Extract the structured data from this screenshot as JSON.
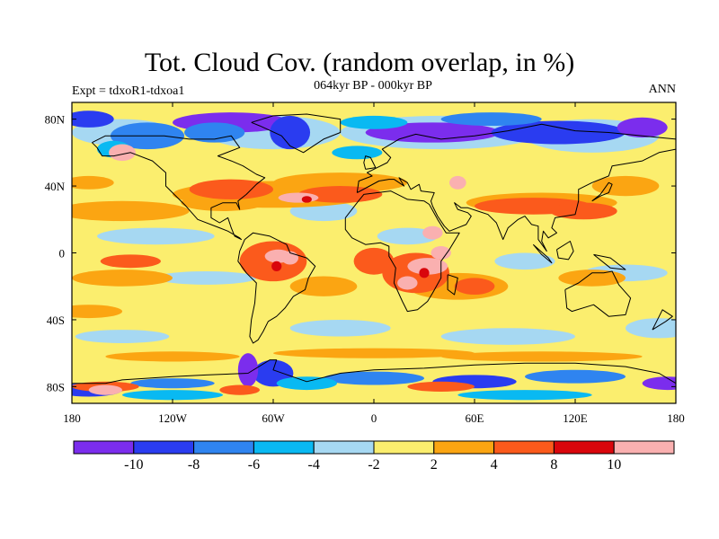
{
  "header": {
    "title": "Tot. Cloud Cov. (random overlap, in %)",
    "subtitle": "064kyr BP - 000kyr BP",
    "expt": "Expt = tdxoR1-tdxoa1",
    "season": "ANN"
  },
  "map": {
    "projection": "cylindrical-equidistant",
    "lat_ticks": [
      "80N",
      "40N",
      "0",
      "40S",
      "80S"
    ],
    "lon_ticks": [
      "180",
      "120W",
      "60W",
      "0",
      "60E",
      "120E",
      "180"
    ],
    "field_background_color": "#fbee6e",
    "coastline_color": "#000000"
  },
  "colorbar": {
    "colors": [
      "#7b2ded",
      "#2a3cf0",
      "#2f84f0",
      "#09b9f2",
      "#a6d8f2",
      "#fbee6e",
      "#fba512",
      "#fb5a1c",
      "#d9060c",
      "#fab0b0"
    ],
    "labels": [
      "-10",
      "-8",
      "-6",
      "-4",
      "-2",
      "2",
      "4",
      "8",
      "10"
    ]
  }
}
